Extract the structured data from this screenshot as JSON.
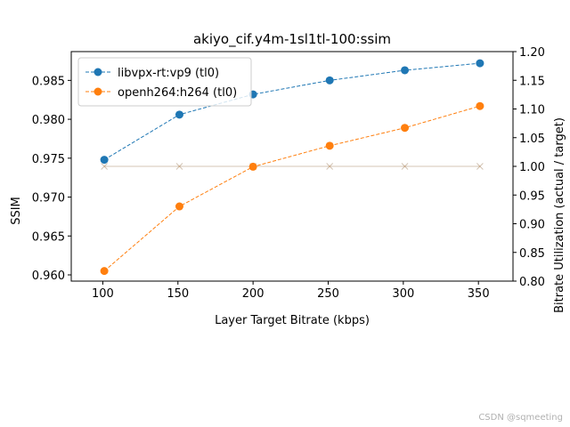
{
  "chart_data": {
    "type": "line",
    "title": "akiyo_cif.y4m-1sl1tl-100:ssim",
    "xlabel": "Layer Target Bitrate (kbps)",
    "ylabel": "SSIM",
    "y2label": "Bitrate Utilization (actual / target)",
    "x": [
      101,
      151,
      200,
      251,
      301,
      351
    ],
    "x_ticks": [
      100,
      150,
      200,
      250,
      300,
      350
    ],
    "x_tick_labels": [
      "100",
      "150",
      "200",
      "250",
      "300",
      "350"
    ],
    "xlim": [
      79,
      373
    ],
    "ylim": [
      0.9592,
      0.9887
    ],
    "y_ticks": [
      0.96,
      0.965,
      0.97,
      0.975,
      0.98,
      0.985
    ],
    "y_tick_labels": [
      "0.960",
      "0.965",
      "0.970",
      "0.975",
      "0.980",
      "0.985"
    ],
    "y2lim": [
      0.8,
      1.2
    ],
    "y2_ticks": [
      0.8,
      0.85,
      0.9,
      0.95,
      1.0,
      1.05,
      1.1,
      1.15,
      1.2
    ],
    "y2_tick_labels": [
      "0.80",
      "0.85",
      "0.90",
      "0.95",
      "1.00",
      "1.05",
      "1.10",
      "1.15",
      "1.20"
    ],
    "grid": false,
    "legend_position": "upper-left",
    "series": [
      {
        "name": "libvpx-rt:vp9 (tl0)",
        "color": "#1f77b4",
        "axis": "left",
        "style": "dashed",
        "marker": "circle",
        "values": [
          0.9748,
          0.9806,
          0.9832,
          0.985,
          0.9863,
          0.9872
        ]
      },
      {
        "name": "openh264:h264 (tl0)",
        "color": "#ff7f0e",
        "axis": "left",
        "style": "dashed",
        "marker": "circle",
        "values": [
          0.9605,
          0.9688,
          0.9739,
          0.9766,
          0.9789,
          0.9817
        ]
      },
      {
        "color": "#1f77b4",
        "axis": "right",
        "style": "solid",
        "marker": "x",
        "opacity": 0.25,
        "values": [
          1.0,
          1.0,
          1.0,
          1.0,
          1.0,
          1.0
        ]
      },
      {
        "color": "#ff7f0e",
        "axis": "right",
        "style": "solid",
        "marker": "x",
        "opacity": 0.25,
        "values": [
          1.0,
          1.0,
          1.0,
          1.0,
          1.0,
          1.0
        ]
      }
    ]
  },
  "watermark": "CSDN @sqmeeting"
}
